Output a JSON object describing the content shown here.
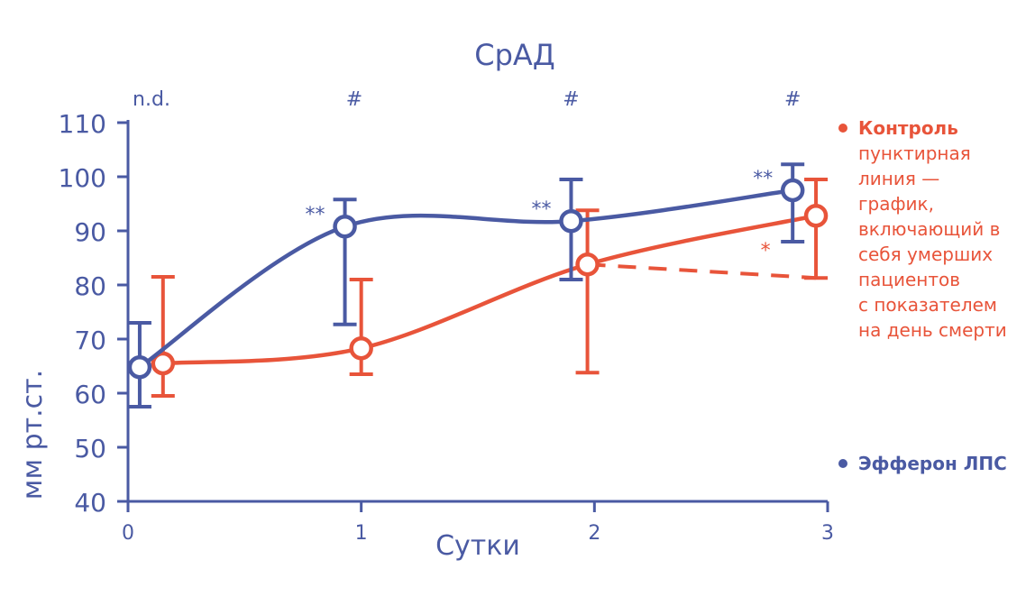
{
  "chart_data": {
    "type": "line",
    "title": "СрАД",
    "xlabel": "Сутки",
    "ylabel": "мм рт.ст.",
    "xlim": [
      0,
      3
    ],
    "ylim": [
      40,
      110
    ],
    "x_ticks": [
      "0",
      "1",
      "2",
      "3"
    ],
    "y_ticks": [
      "40",
      "50",
      "60",
      "70",
      "80",
      "90",
      "100",
      "110"
    ],
    "top_annotations": [
      {
        "x": 0.05,
        "text": "n.d."
      },
      {
        "x": 0.97,
        "text": "#"
      },
      {
        "x": 1.9,
        "text": "#"
      },
      {
        "x": 2.85,
        "text": "#"
      }
    ],
    "series": [
      {
        "name": "Эфферон ЛПС",
        "color": "#4a5aa3",
        "x": [
          0.05,
          0.93,
          1.9,
          2.85
        ],
        "y": [
          64.8,
          90.8,
          91.8,
          97.5
        ],
        "err_low": [
          57.5,
          72.7,
          81.0,
          88.0
        ],
        "err_high": [
          73.0,
          95.8,
          99.5,
          102.3
        ],
        "annotations": [
          "",
          "**",
          "**",
          "**"
        ]
      },
      {
        "name": "Контроль",
        "color": "#e8543a",
        "x": [
          0.15,
          1.0,
          1.97,
          2.95
        ],
        "y": [
          65.5,
          68.3,
          83.8,
          92.8
        ],
        "err_low": [
          59.5,
          63.5,
          63.8,
          81.3
        ],
        "err_high": [
          81.5,
          81.0,
          93.8,
          99.5
        ],
        "annotations": [
          "",
          "",
          "",
          "*"
        ]
      }
    ],
    "dashed_line": {
      "series": "Контроль",
      "x": [
        1.97,
        2.95
      ],
      "y": [
        83.8,
        81.3
      ]
    }
  },
  "legend": {
    "control_title": "Контроль",
    "control_note": [
      "пунктирная",
      "линия —",
      "график,",
      "включающий в",
      "себя умерших",
      "пациентов",
      "с показателем",
      "на день смерти"
    ],
    "efferon_title": "Эфферон ЛПС"
  }
}
